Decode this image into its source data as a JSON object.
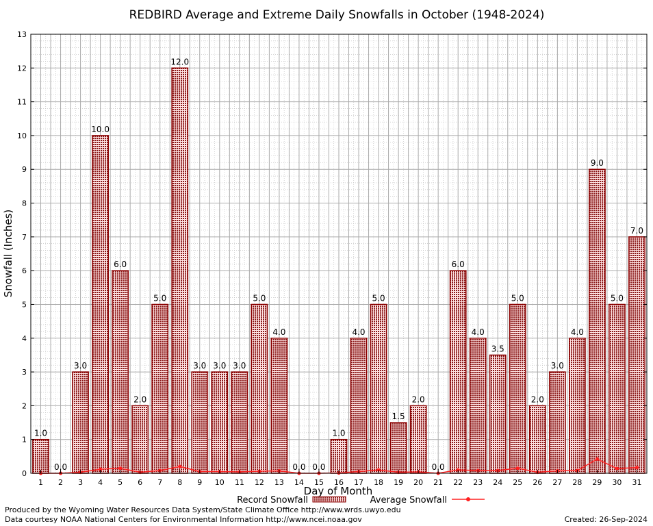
{
  "chart_data": {
    "type": "bar",
    "title": "REDBIRD Average and Extreme Daily Snowfalls in October (1948-2024)",
    "xlabel": "Day of Month",
    "ylabel": "Snowfall (Inches)",
    "ylim": [
      0,
      13
    ],
    "yticks": [
      "0",
      "1",
      "2",
      "3",
      "4",
      "5",
      "6",
      "7",
      "8",
      "9",
      "10",
      "11",
      "12",
      "13"
    ],
    "categories": [
      "1",
      "2",
      "3",
      "4",
      "5",
      "6",
      "7",
      "8",
      "9",
      "10",
      "11",
      "12",
      "13",
      "14",
      "15",
      "16",
      "17",
      "18",
      "19",
      "20",
      "21",
      "22",
      "23",
      "24",
      "25",
      "26",
      "27",
      "28",
      "29",
      "30",
      "31"
    ],
    "series": [
      {
        "name": "Record Snowfall",
        "type": "bar",
        "values": [
          1.0,
          0.0,
          3.0,
          10.0,
          6.0,
          2.0,
          5.0,
          12.0,
          3.0,
          3.0,
          3.0,
          5.0,
          4.0,
          0.0,
          0.0,
          1.0,
          4.0,
          5.0,
          1.5,
          2.0,
          0.0,
          6.0,
          4.0,
          3.5,
          5.0,
          2.0,
          3.0,
          4.0,
          9.0,
          5.0,
          7.0
        ],
        "labels": [
          "1.0",
          "0.0",
          "3.0",
          "10.0",
          "6.0",
          "2.0",
          "5.0",
          "12.0",
          "3.0",
          "3.0",
          "3.0",
          "5.0",
          "4.0",
          "0.0",
          "0.0",
          "1.0",
          "4.0",
          "5.0",
          "1.5",
          "2.0",
          "0.0",
          "6.0",
          "4.0",
          "3.5",
          "5.0",
          "2.0",
          "3.0",
          "4.0",
          "9.0",
          "5.0",
          "7.0"
        ]
      },
      {
        "name": "Average Snowfall",
        "type": "line",
        "values": [
          0.0,
          0.0,
          0.03,
          0.12,
          0.15,
          0.03,
          0.08,
          0.2,
          0.05,
          0.05,
          0.04,
          0.06,
          0.07,
          0.0,
          0.0,
          0.01,
          0.05,
          0.1,
          0.03,
          0.04,
          0.0,
          0.1,
          0.08,
          0.08,
          0.15,
          0.03,
          0.07,
          0.08,
          0.42,
          0.14,
          0.17
        ]
      }
    ],
    "legend": [
      "Record Snowfall",
      "Average Snowfall"
    ],
    "legend_position": "bottom",
    "colors": {
      "bar_fill": "#8b1a1a",
      "bar_stroke": "#8b0000",
      "line": "#ff2020",
      "grid_major": "#aaaaaa",
      "grid_minor": "#bbbbbb"
    }
  },
  "footer": {
    "produced_by": "Produced by the Wyoming Water Resources Data System/State Climate Office http://www.wrds.uwyo.edu",
    "data_courtesy": "Data courtesy NOAA National Centers for Environmental Information http://www.ncei.noaa.gov",
    "created": "Created:  26-Sep-2024"
  }
}
